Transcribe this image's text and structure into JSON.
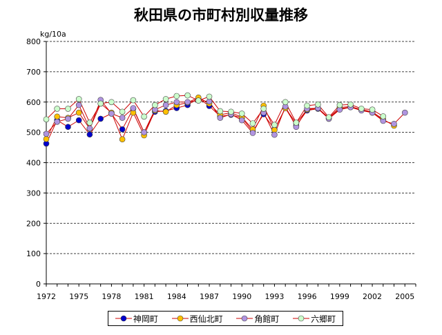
{
  "chart_data": {
    "type": "line",
    "title": "秋田県の市町村別収量推移",
    "ylabel": "kg/10a",
    "xlabel": "",
    "ylim": [
      0,
      800
    ],
    "yticks": [
      0,
      100,
      200,
      300,
      400,
      500,
      600,
      700,
      800
    ],
    "xlim": [
      1972,
      2006
    ],
    "xticks": [
      1972,
      1975,
      1978,
      1981,
      1984,
      1987,
      1990,
      1993,
      1996,
      1999,
      2002,
      2005
    ],
    "grid": true,
    "legend_position": "bottom",
    "series": [
      {
        "name": "神岡町",
        "line_color": "#cc0000",
        "marker_color": "#0000cc",
        "x": [
          1972,
          1973,
          1974,
          1975,
          1976,
          1977,
          1978,
          1979,
          1980,
          1981,
          1982,
          1983,
          1984,
          1985,
          1986,
          1987,
          1988,
          1989,
          1990,
          1991,
          1992,
          1993,
          1994,
          1995,
          1996,
          1997,
          1998,
          1999,
          2000,
          2001,
          2002,
          2003
        ],
        "values": [
          463,
          540,
          518,
          540,
          493,
          545,
          562,
          510,
          578,
          500,
          568,
          571,
          580,
          590,
          613,
          587,
          553,
          558,
          548,
          503,
          560,
          510,
          580,
          522,
          572,
          578,
          545,
          578,
          583,
          575,
          565,
          540
        ]
      },
      {
        "name": "西仙北町",
        "line_color": "#cc0000",
        "marker_color": "#ffc000",
        "x": [
          1972,
          1973,
          1974,
          1975,
          1976,
          1977,
          1978,
          1979,
          1980,
          1981,
          1982,
          1983,
          1984,
          1985,
          1986,
          1987,
          1988,
          1989,
          1990,
          1991,
          1992,
          1993,
          1994,
          1995,
          1996,
          1997,
          1998,
          1999,
          2000,
          2001,
          2002,
          2003,
          2004
        ],
        "values": [
          478,
          552,
          548,
          565,
          512,
          595,
          565,
          477,
          565,
          490,
          572,
          568,
          590,
          598,
          615,
          595,
          558,
          565,
          550,
          510,
          588,
          508,
          580,
          530,
          575,
          580,
          548,
          582,
          585,
          575,
          568,
          543,
          522
        ]
      },
      {
        "name": "角館町",
        "line_color": "#cc0000",
        "marker_color": "#b094e0",
        "x": [
          1972,
          1973,
          1974,
          1975,
          1976,
          1977,
          1978,
          1979,
          1980,
          1981,
          1982,
          1983,
          1984,
          1985,
          1986,
          1987,
          1988,
          1989,
          1990,
          1991,
          1992,
          1993,
          1994,
          1995,
          1996,
          1997,
          1998,
          1999,
          2000,
          2001,
          2002,
          2003,
          2004,
          2005
        ],
        "values": [
          495,
          535,
          545,
          590,
          513,
          607,
          562,
          548,
          580,
          500,
          575,
          590,
          600,
          600,
          605,
          602,
          548,
          560,
          540,
          498,
          565,
          492,
          585,
          518,
          578,
          580,
          545,
          575,
          583,
          572,
          565,
          538,
          528,
          565
        ]
      },
      {
        "name": "六郷町",
        "line_color": "#cc0000",
        "marker_color": "#ccffcc",
        "x": [
          1972,
          1973,
          1974,
          1975,
          1976,
          1977,
          1978,
          1979,
          1980,
          1981,
          1982,
          1983,
          1984,
          1985,
          1986,
          1987,
          1988,
          1989,
          1990,
          1991,
          1992,
          1993,
          1994,
          1995,
          1996,
          1997,
          1998,
          1999,
          2000,
          2001,
          2002,
          2003
        ],
        "values": [
          543,
          578,
          578,
          610,
          532,
          595,
          600,
          568,
          606,
          552,
          590,
          610,
          620,
          622,
          605,
          618,
          570,
          568,
          562,
          530,
          578,
          525,
          600,
          532,
          588,
          592,
          550,
          590,
          592,
          578,
          575,
          553
        ]
      }
    ]
  }
}
